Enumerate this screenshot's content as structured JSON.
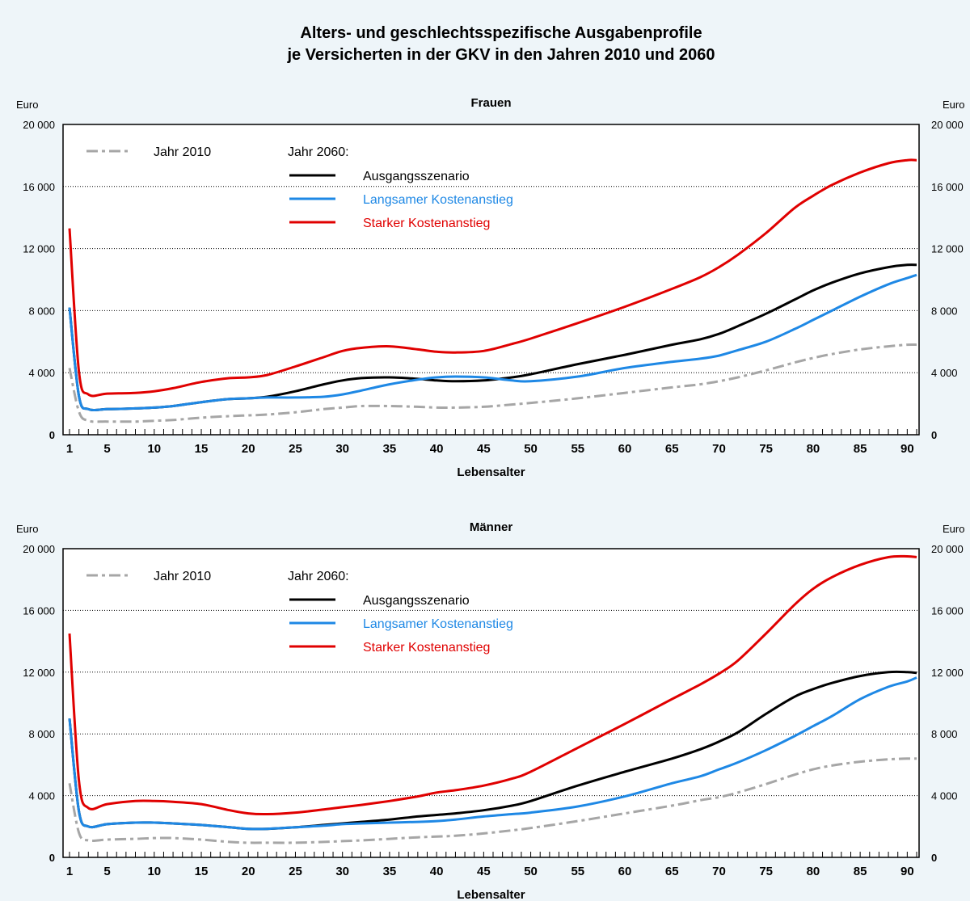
{
  "title_line1": "Alters- und geschlechtsspezifische Ausgabenprofile",
  "title_line2": "je Versicherten in der GKV in den Jahren 2010 und 2060",
  "chart_data": [
    {
      "type": "line",
      "title": "Frauen",
      "ylabel": "Euro",
      "xlabel": "Lebensalter",
      "xlim": [
        1,
        91
      ],
      "ylim": [
        0,
        20000
      ],
      "y_ticks": [
        0,
        4000,
        8000,
        12000,
        16000,
        20000
      ],
      "y_tick_labels": [
        "0",
        "4 000",
        "8 000",
        "12 000",
        "16 000",
        "20 000"
      ],
      "x_ticks": [
        1,
        5,
        10,
        15,
        20,
        25,
        30,
        35,
        40,
        45,
        50,
        55,
        60,
        65,
        70,
        75,
        80,
        85,
        90
      ],
      "legend_header": "Jahr 2060:",
      "grid": "horizontal dotted",
      "legend_position": "top-left",
      "x": [
        1,
        2,
        3,
        5,
        8,
        10,
        12,
        15,
        18,
        20,
        22,
        25,
        28,
        30,
        32,
        35,
        38,
        40,
        42,
        45,
        48,
        50,
        55,
        60,
        65,
        68,
        70,
        72,
        75,
        78,
        80,
        82,
        85,
        88,
        90,
        91
      ],
      "series": [
        {
          "name": "Jahr 2010",
          "color": "#a6a6a6",
          "dash": "dashdot",
          "values": [
            4300,
            1500,
            900,
            850,
            850,
            900,
            950,
            1100,
            1200,
            1250,
            1300,
            1450,
            1650,
            1750,
            1850,
            1850,
            1800,
            1750,
            1750,
            1800,
            1950,
            2050,
            2350,
            2700,
            3050,
            3250,
            3450,
            3700,
            4150,
            4650,
            4950,
            5200,
            5500,
            5700,
            5800,
            5800
          ]
        },
        {
          "name": "Ausgangsszenario",
          "color": "#000000",
          "dash": "solid",
          "values": [
            8200,
            2500,
            1650,
            1650,
            1700,
            1750,
            1850,
            2100,
            2300,
            2350,
            2450,
            2800,
            3250,
            3500,
            3650,
            3700,
            3600,
            3500,
            3450,
            3500,
            3700,
            3900,
            4550,
            5150,
            5800,
            6150,
            6500,
            7000,
            7800,
            8700,
            9300,
            9800,
            10400,
            10800,
            10950,
            10950
          ]
        },
        {
          "name": "Langsamer Kostenanstieg",
          "color": "#1e88e5",
          "dash": "solid",
          "values": [
            8200,
            2500,
            1650,
            1650,
            1700,
            1750,
            1850,
            2100,
            2300,
            2350,
            2400,
            2400,
            2450,
            2600,
            2850,
            3250,
            3550,
            3700,
            3750,
            3700,
            3500,
            3450,
            3750,
            4300,
            4700,
            4900,
            5100,
            5450,
            6000,
            6800,
            7400,
            8000,
            8900,
            9700,
            10100,
            10300
          ]
        },
        {
          "name": "Starker Kostenanstieg",
          "color": "#e00000",
          "dash": "solid",
          "values": [
            13300,
            4100,
            2600,
            2650,
            2700,
            2800,
            3000,
            3400,
            3650,
            3700,
            3850,
            4400,
            5000,
            5400,
            5600,
            5700,
            5500,
            5350,
            5300,
            5400,
            5850,
            6200,
            7200,
            8250,
            9400,
            10150,
            10800,
            11600,
            13000,
            14600,
            15400,
            16100,
            16900,
            17500,
            17700,
            17700
          ]
        }
      ]
    },
    {
      "type": "line",
      "title": "Männer",
      "ylabel": "Euro",
      "xlabel": "Lebensalter",
      "xlim": [
        1,
        91
      ],
      "ylim": [
        0,
        20000
      ],
      "y_ticks": [
        0,
        4000,
        8000,
        12000,
        16000,
        20000
      ],
      "y_tick_labels": [
        "0",
        "4 000",
        "8 000",
        "12 000",
        "16 000",
        "20 000"
      ],
      "x_ticks": [
        1,
        5,
        10,
        15,
        20,
        25,
        30,
        35,
        40,
        45,
        50,
        55,
        60,
        65,
        70,
        75,
        80,
        85,
        90
      ],
      "legend_header": "Jahr 2060:",
      "grid": "horizontal dotted",
      "legend_position": "top-left",
      "x": [
        1,
        2,
        3,
        5,
        8,
        10,
        12,
        15,
        18,
        20,
        22,
        25,
        28,
        30,
        32,
        35,
        38,
        40,
        42,
        45,
        48,
        50,
        55,
        60,
        65,
        68,
        70,
        72,
        75,
        78,
        80,
        82,
        85,
        88,
        90,
        91
      ],
      "series": [
        {
          "name": "Jahr 2010",
          "color": "#a6a6a6",
          "dash": "dashdot",
          "values": [
            4800,
            1600,
            1100,
            1150,
            1200,
            1250,
            1250,
            1150,
            1000,
            950,
            950,
            950,
            1000,
            1050,
            1100,
            1200,
            1300,
            1350,
            1400,
            1550,
            1750,
            1900,
            2350,
            2850,
            3350,
            3700,
            3900,
            4200,
            4750,
            5350,
            5700,
            5950,
            6200,
            6350,
            6400,
            6400
          ]
        },
        {
          "name": "Ausgangsszenario",
          "color": "#000000",
          "dash": "solid",
          "values": [
            9000,
            3000,
            2000,
            2150,
            2250,
            2250,
            2200,
            2100,
            1950,
            1850,
            1850,
            1950,
            2100,
            2200,
            2300,
            2450,
            2650,
            2750,
            2850,
            3050,
            3350,
            3650,
            4650,
            5550,
            6400,
            7000,
            7500,
            8100,
            9300,
            10400,
            10900,
            11300,
            11750,
            12000,
            12000,
            11950
          ]
        },
        {
          "name": "Langsamer Kostenanstieg",
          "color": "#1e88e5",
          "dash": "solid",
          "values": [
            9000,
            3000,
            2000,
            2150,
            2250,
            2250,
            2200,
            2100,
            1950,
            1850,
            1850,
            1950,
            2050,
            2150,
            2200,
            2250,
            2300,
            2350,
            2450,
            2650,
            2800,
            2900,
            3300,
            3950,
            4800,
            5250,
            5700,
            6150,
            6950,
            7850,
            8500,
            9150,
            10250,
            11050,
            11400,
            11650
          ]
        },
        {
          "name": "Starker Kostenanstieg",
          "color": "#e00000",
          "dash": "solid",
          "values": [
            14500,
            5000,
            3200,
            3450,
            3650,
            3650,
            3600,
            3450,
            3050,
            2850,
            2800,
            2900,
            3100,
            3250,
            3400,
            3650,
            3950,
            4200,
            4350,
            4650,
            5100,
            5550,
            7100,
            8650,
            10250,
            11200,
            11900,
            12750,
            14500,
            16350,
            17400,
            18150,
            18950,
            19450,
            19500,
            19450
          ]
        }
      ]
    }
  ]
}
